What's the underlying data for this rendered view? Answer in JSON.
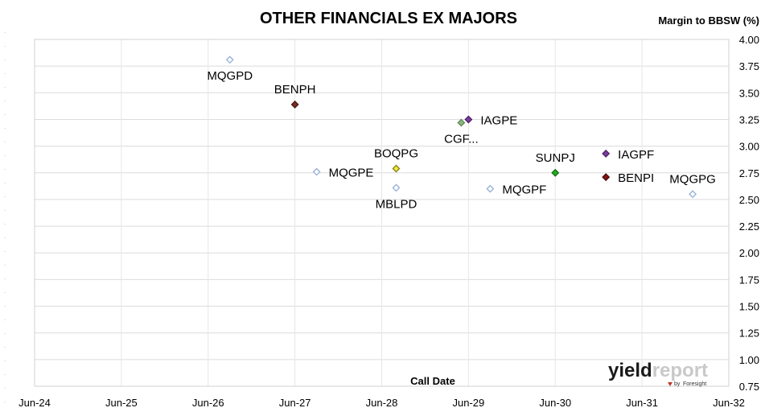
{
  "chart_data": {
    "type": "scatter",
    "title": "OTHER FINANCIALS EX MAJORS",
    "xlabel": "Call Date",
    "ylabel": "Margin to BBSW (%)",
    "x_ticks": [
      "Jun-24",
      "Jun-25",
      "Jun-26",
      "Jun-27",
      "Jun-28",
      "Jun-29",
      "Jun-30",
      "Jun-31",
      "Jun-32"
    ],
    "xlim": [
      "Jun-24",
      "Jun-32"
    ],
    "y_ticks": [
      "0.75",
      "1.00",
      "1.25",
      "1.50",
      "1.75",
      "2.00",
      "2.25",
      "2.50",
      "2.75",
      "3.00",
      "3.25",
      "3.50",
      "3.75",
      "4.00"
    ],
    "ylim": [
      0.75,
      4.0
    ],
    "grid": true,
    "points": [
      {
        "name": "MQGPD",
        "x": "2026-09",
        "y": 3.81,
        "color": "#ffffff",
        "stroke": "#9ab4d9",
        "label_pos": "below"
      },
      {
        "name": "BENPH",
        "x": "2027-06",
        "y": 3.39,
        "color": "#7a2e21",
        "stroke": "#4a1a12",
        "label_pos": "above"
      },
      {
        "name": "MQGPE",
        "x": "2027-09",
        "y": 2.76,
        "color": "#ffffff",
        "stroke": "#9ab4d9",
        "label_pos": "right"
      },
      {
        "name": "BOQPG",
        "x": "2028-08",
        "y": 2.79,
        "color": "#f2ec3a",
        "stroke": "#8a8520",
        "label_pos": "above"
      },
      {
        "name": "MBLPD",
        "x": "2028-08",
        "y": 2.61,
        "color": "#ffffff",
        "stroke": "#9ab4d9",
        "label_pos": "below"
      },
      {
        "name": "CGF...",
        "x": "2029-05",
        "y": 3.22,
        "color": "#8dbb7f",
        "stroke": "#5f8a52",
        "label_pos": "below"
      },
      {
        "name": "IAGPE",
        "x": "2029-06",
        "y": 3.25,
        "color": "#7a3fa0",
        "stroke": "#4f2468",
        "label_pos": "right"
      },
      {
        "name": "MQGPF",
        "x": "2029-09",
        "y": 2.6,
        "color": "#ffffff",
        "stroke": "#9ab4d9",
        "label_pos": "right"
      },
      {
        "name": "SUNPJ",
        "x": "2030-06",
        "y": 2.75,
        "color": "#22b022",
        "stroke": "#137013",
        "label_pos": "above"
      },
      {
        "name": "IAGPF",
        "x": "2031-01",
        "y": 2.93,
        "color": "#7a3fa0",
        "stroke": "#4f2468",
        "label_pos": "right"
      },
      {
        "name": "BENPI",
        "x": "2031-01",
        "y": 2.71,
        "color": "#8a1414",
        "stroke": "#4a0a0a",
        "label_pos": "right"
      },
      {
        "name": "MQGPG",
        "x": "2032-01",
        "y": 2.55,
        "color": "#ffffff",
        "stroke": "#9ab4d9",
        "label_pos": "above"
      }
    ]
  },
  "logo": {
    "text_yield": "yield",
    "text_report": "report",
    "text_by": "by",
    "text_brand": "Foresight"
  }
}
